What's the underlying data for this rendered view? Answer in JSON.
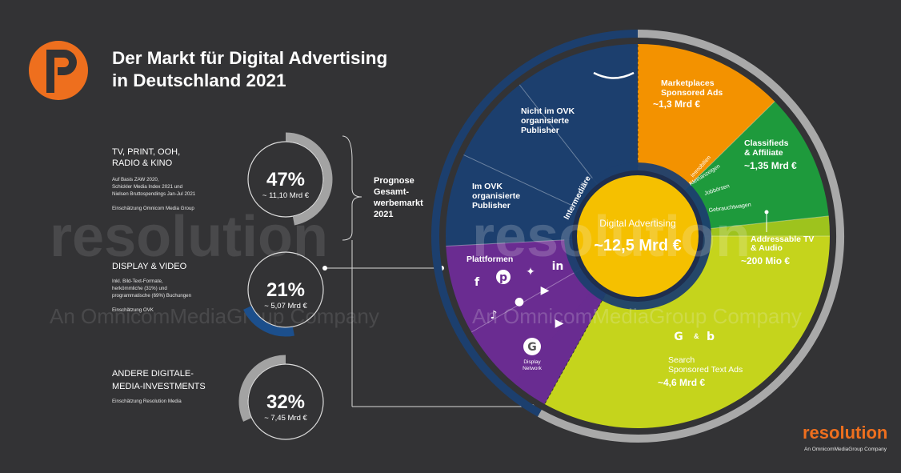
{
  "title_line1": "Der Markt für Digital Advertising",
  "title_line2": "in Deutschland 2021",
  "prognose": [
    "Prognose",
    "Gesamt-",
    "werbemarkt",
    "2021"
  ],
  "categories": [
    {
      "title_lines": [
        "TV, PRINT, OOH,",
        "RADIO & KINO"
      ],
      "notes": [
        "Auf Basis ZAW 2020,",
        "Schickler Media Index 2021 und",
        "Nielsen Bruttospendings Jan-Jul 2021",
        "",
        "Einschätzung Omnicom Media Group"
      ],
      "percent": "47%",
      "amount": "~ 11,10 Mrd €"
    },
    {
      "title_lines": [
        "DISPLAY & VIDEO"
      ],
      "notes": [
        "Inkl. Bild-Text-Formate,",
        "herkömmliche (31%) und",
        "programmatische (69%) Buchungen",
        "",
        "Einschätzung OVK"
      ],
      "percent": "21%",
      "amount": "~ 5,07 Mrd €"
    },
    {
      "title_lines": [
        "ANDERE DIGITALE-",
        "MEDIA-INVESTMENTS"
      ],
      "notes": [
        "Einschätzung Resolution Media"
      ],
      "percent": "32%",
      "amount": "~ 7,45 Mrd €"
    }
  ],
  "center": {
    "label": "Digital Advertising",
    "value": "~12,5 Mrd €"
  },
  "segments": {
    "nicht_ovk": [
      "Nicht im OVK",
      "organisierte",
      "Publisher"
    ],
    "im_ovk": [
      "Im OVK",
      "organisierte",
      "Publisher"
    ],
    "intermediaere": "Intermediäre",
    "plattformen": "Plattformen",
    "display_network": [
      "Display",
      "Network"
    ],
    "marketplaces": [
      "Marketplaces",
      "Sponsored Ads"
    ],
    "marketplaces_value": "~1,3 Mrd €",
    "classifieds": [
      "Classifieds",
      "& Affiliate"
    ],
    "classifieds_value": "~1,35 Mrd €",
    "immobilien": "Immobilien",
    "kleinanzeigen": "Kleinanzeigen",
    "jobboersen": "Jobbörsen",
    "gebrauchtwagen": "Gebrauchtwagen",
    "addressable": [
      "Addressable TV",
      "& Audio"
    ],
    "addressable_value": "~200 Mio €",
    "search": [
      "Search",
      "Sponsored Text Ads"
    ],
    "search_value": "~4,6 Mrd €",
    "g_and_b": "&"
  },
  "watermark": {
    "word": "resolution",
    "tagline": "An OmnicomMediaGroup Company"
  },
  "logo": {
    "word": "resolution",
    "tagline": "An OmnicomMediaGroup Company"
  },
  "colors": {
    "background": "#333335",
    "navy": "#1c3f6e",
    "orange": "#f39200",
    "green": "#1e9a3c",
    "yellowgreen": "#c5d41c",
    "purple": "#6a2c91",
    "gold": "#f5c000",
    "grey_ring": "#a9a9a9",
    "brand_orange": "#ee6f1e"
  },
  "chart_data": [
    {
      "type": "pie",
      "title": "Prognose Gesamtwerbemarkt 2021",
      "categories": [
        "TV, PRINT, OOH, RADIO & KINO",
        "DISPLAY & VIDEO",
        "ANDERE DIGITALE-MEDIA-INVESTMENTS"
      ],
      "values": [
        47,
        21,
        32
      ],
      "labels": [
        "~ 11,10 Mrd €",
        "~ 5,07 Mrd €",
        "~ 7,45 Mrd €"
      ]
    },
    {
      "type": "pie",
      "title": "Digital Advertising ~12,5 Mrd €",
      "categories": [
        "Display & Video",
        "Marketplaces Sponsored Ads",
        "Classifieds & Affiliate",
        "Addressable TV & Audio",
        "Search Sponsored Text Ads"
      ],
      "values_mrd_eur": [
        5.07,
        1.3,
        1.35,
        0.2,
        4.6
      ]
    }
  ]
}
